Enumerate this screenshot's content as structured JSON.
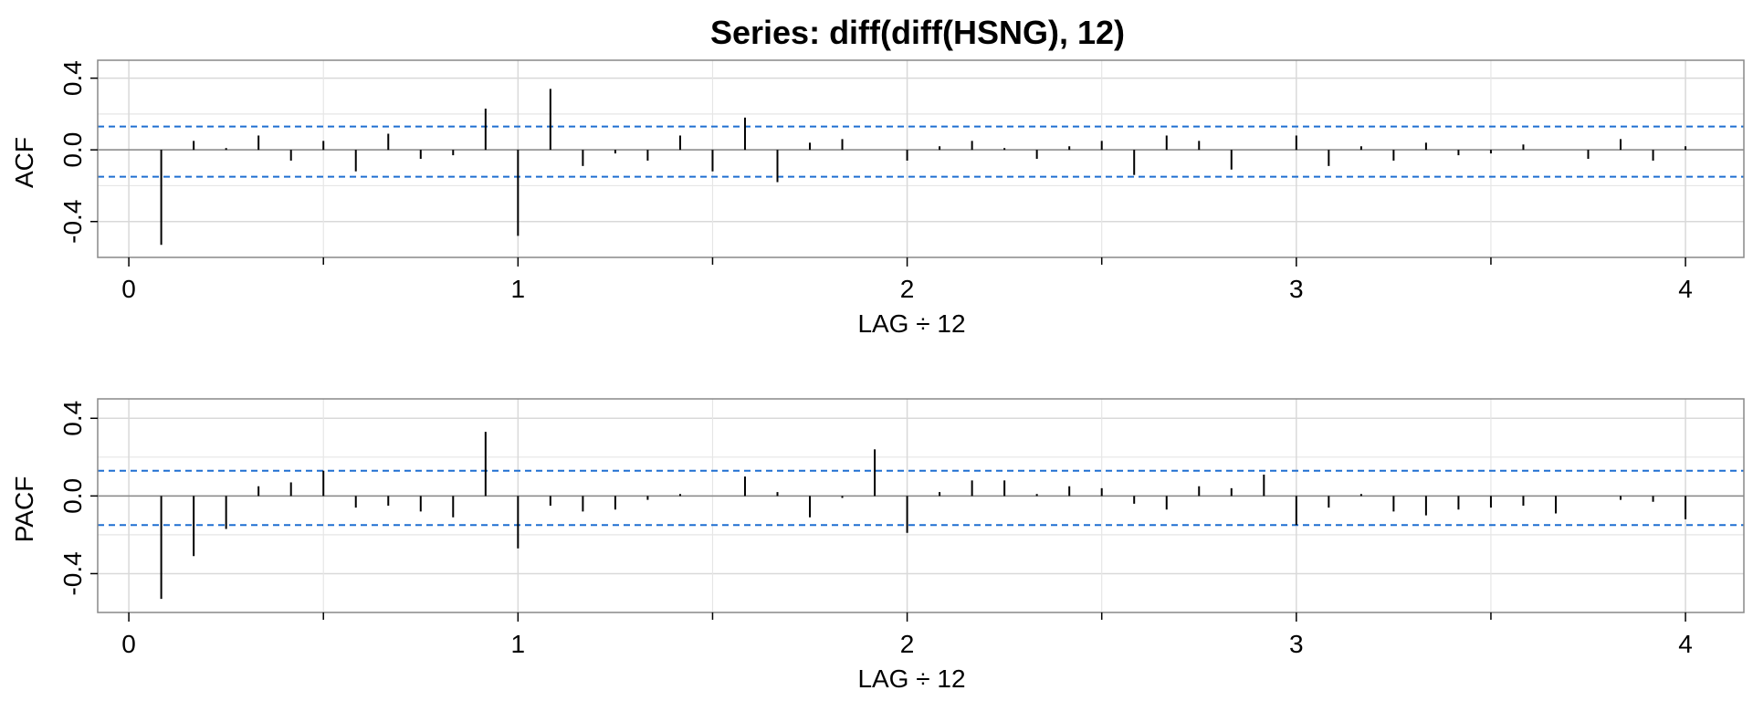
{
  "title": "Series:  diff(diff(HSNG), 12)",
  "chart_data": [
    {
      "type": "bar",
      "ylabel": "ACF",
      "xlabel": "LAG ÷ 12",
      "xlim": [
        -0.08,
        4.15
      ],
      "ylim": [
        -0.6,
        0.5
      ],
      "yticks": [
        -0.4,
        0.0,
        0.4
      ],
      "ytick_labels": [
        "-0.4",
        "0.0",
        "0.4"
      ],
      "xticks": [
        0,
        1,
        2,
        3,
        4
      ],
      "xtick_labels": [
        "0",
        "1",
        "2",
        "3",
        "4"
      ],
      "conf_band": [
        0.13,
        -0.15
      ],
      "grid": true,
      "lags": [
        0.0833,
        0.1667,
        0.25,
        0.3333,
        0.4167,
        0.5,
        0.5833,
        0.6667,
        0.75,
        0.8333,
        0.9167,
        1.0,
        1.0833,
        1.1667,
        1.25,
        1.3333,
        1.4167,
        1.5,
        1.5833,
        1.6667,
        1.75,
        1.8333,
        1.9167,
        2.0,
        2.0833,
        2.1667,
        2.25,
        2.3333,
        2.4167,
        2.5,
        2.5833,
        2.6667,
        2.75,
        2.8333,
        2.9167,
        3.0,
        3.0833,
        3.1667,
        3.25,
        3.3333,
        3.4167,
        3.5,
        3.5833,
        3.6667,
        3.75,
        3.8333,
        3.9167,
        4.0
      ],
      "values": [
        -0.53,
        0.05,
        0.01,
        0.08,
        -0.06,
        0.05,
        -0.12,
        0.09,
        -0.05,
        -0.03,
        0.23,
        -0.48,
        0.34,
        -0.09,
        -0.02,
        -0.06,
        0.08,
        -0.12,
        0.18,
        -0.18,
        0.04,
        0.06,
        0.0,
        -0.06,
        0.02,
        0.05,
        0.01,
        -0.05,
        0.02,
        0.05,
        -0.14,
        0.08,
        0.05,
        -0.11,
        0.0,
        0.08,
        -0.09,
        0.02,
        -0.06,
        0.04,
        -0.03,
        -0.02,
        0.03,
        0.0,
        -0.05,
        0.06,
        -0.06,
        0.02
      ]
    },
    {
      "type": "bar",
      "ylabel": "PACF",
      "xlabel": "LAG ÷ 12",
      "xlim": [
        -0.08,
        4.15
      ],
      "ylim": [
        -0.6,
        0.5
      ],
      "yticks": [
        -0.4,
        0.0,
        0.4
      ],
      "ytick_labels": [
        "-0.4",
        "0.0",
        "0.4"
      ],
      "xticks": [
        0,
        1,
        2,
        3,
        4
      ],
      "xtick_labels": [
        "0",
        "1",
        "2",
        "3",
        "4"
      ],
      "conf_band": [
        0.13,
        -0.15
      ],
      "grid": true,
      "lags": [
        0.0833,
        0.1667,
        0.25,
        0.3333,
        0.4167,
        0.5,
        0.5833,
        0.6667,
        0.75,
        0.8333,
        0.9167,
        1.0,
        1.0833,
        1.1667,
        1.25,
        1.3333,
        1.4167,
        1.5,
        1.5833,
        1.6667,
        1.75,
        1.8333,
        1.9167,
        2.0,
        2.0833,
        2.1667,
        2.25,
        2.3333,
        2.4167,
        2.5,
        2.5833,
        2.6667,
        2.75,
        2.8333,
        2.9167,
        3.0,
        3.0833,
        3.1667,
        3.25,
        3.3333,
        3.4167,
        3.5,
        3.5833,
        3.6667,
        3.75,
        3.8333,
        3.9167,
        4.0
      ],
      "values": [
        -0.53,
        -0.31,
        -0.17,
        0.05,
        0.07,
        0.13,
        -0.06,
        -0.05,
        -0.08,
        -0.11,
        0.33,
        -0.27,
        -0.05,
        -0.08,
        -0.07,
        -0.02,
        0.01,
        0.0,
        0.1,
        0.02,
        -0.11,
        -0.01,
        0.24,
        -0.19,
        0.02,
        0.08,
        0.08,
        0.01,
        0.05,
        0.04,
        -0.04,
        -0.07,
        0.05,
        0.04,
        0.11,
        -0.15,
        -0.06,
        0.01,
        -0.08,
        -0.1,
        -0.07,
        -0.06,
        -0.05,
        -0.09,
        0.0,
        -0.02,
        -0.03,
        -0.12
      ]
    }
  ]
}
